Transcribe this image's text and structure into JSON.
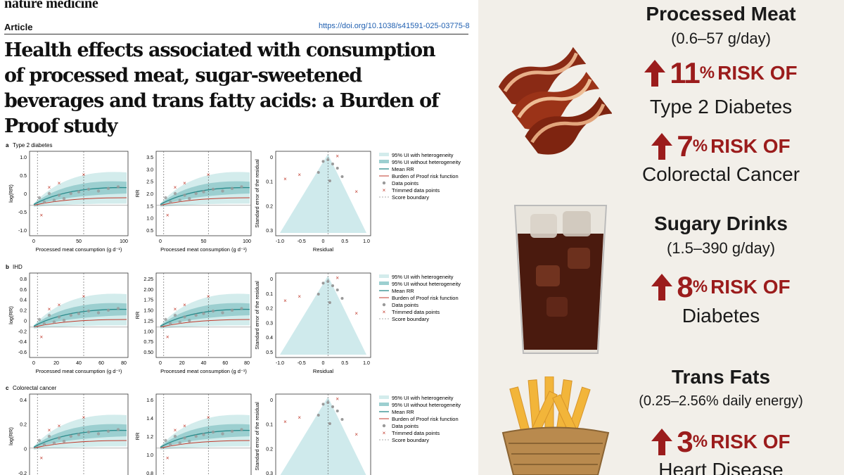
{
  "paper": {
    "journal": "nature medicine",
    "article_type": "Article",
    "doi": "https://doi.org/10.1038/s41591-025-03775-8",
    "title_lines": [
      "Health effects associated with consumption",
      "of processed meat, sugar-sweetened",
      "beverages and trans fatty acids: a Burden of",
      "Proof study"
    ]
  },
  "panels": [
    {
      "tag": "a",
      "name": "Type 2 diabetes",
      "p1": {
        "ylabel": "log(RR)",
        "yticks": [
          "1.0",
          "0.5",
          "0",
          "-0.5",
          "-1.0"
        ],
        "xticks": [
          "0",
          "50",
          "100"
        ],
        "xlabel": "Processed meat consumption (g d⁻¹)"
      },
      "p2": {
        "ylabel": "RR",
        "yticks": [
          "3.5",
          "3.0",
          "2.5",
          "2.0",
          "1.5",
          "1.0",
          "0.5"
        ],
        "xticks": [
          "0",
          "50",
          "100"
        ],
        "xlabel": "Processed meat consumption (g d⁻¹)"
      },
      "p3": {
        "ylabel": "Standard error of the residual",
        "yticks": [
          "0",
          "0.1",
          "0.2",
          "0.3"
        ],
        "xticks": [
          "-1.0",
          "-0.5",
          "0",
          "0.5",
          "1.0"
        ],
        "xlabel": "Residual"
      }
    },
    {
      "tag": "b",
      "name": "IHD",
      "p1": {
        "ylabel": "log(RR)",
        "yticks": [
          "0.8",
          "0.6",
          "0.4",
          "0.2",
          "0",
          "-0.2",
          "-0.4",
          "-0.6"
        ],
        "xticks": [
          "0",
          "20",
          "40",
          "60",
          "80"
        ],
        "xlabel": "Processed meat consumption (g d⁻¹)"
      },
      "p2": {
        "ylabel": "RR",
        "yticks": [
          "2.25",
          "2.00",
          "1.75",
          "1.50",
          "1.25",
          "1.00",
          "0.75",
          "0.50"
        ],
        "xticks": [
          "0",
          "20",
          "40",
          "60",
          "80"
        ],
        "xlabel": "Processed meat consumption (g d⁻¹)"
      },
      "p3": {
        "ylabel": "Standard error of the residual",
        "yticks": [
          "0",
          "0.1",
          "0.2",
          "0.3",
          "0.4",
          "0.5"
        ],
        "xticks": [
          "-1.0",
          "-0.5",
          "0",
          "0.5",
          "1.0"
        ],
        "xlabel": "Residual"
      }
    },
    {
      "tag": "c",
      "name": "Colorectal cancer",
      "p1": {
        "ylabel": "log(RR)",
        "yticks": [
          "0.4",
          "0.2",
          "0",
          "-0.2"
        ],
        "xticks": [],
        "xlabel": ""
      },
      "p2": {
        "ylabel": "RR",
        "yticks": [
          "1.6",
          "1.4",
          "1.2",
          "1.0",
          "0.8"
        ],
        "xticks": [],
        "xlabel": ""
      },
      "p3": {
        "ylabel": "Standard error of the residual",
        "yticks": [
          "0",
          "0.1",
          "0.2",
          "0.3"
        ],
        "xticks": [],
        "xlabel": ""
      }
    }
  ],
  "legend": [
    "95% UI with heterogeneity",
    "95% UI without heterogeneity",
    "Mean RR",
    "Burden of Proof risk function",
    "Data points",
    "Trimmed data points",
    "Score boundary"
  ],
  "colors": {
    "teal": "#2a8a8a",
    "band_outer": "#d3ecec",
    "band_inner": "#9ccfd0",
    "red_line": "#c0392b",
    "accent": "#9b1c1c"
  },
  "infographic": {
    "items": [
      {
        "title": "Processed Meat",
        "range": "(0.6–57 g/day)",
        "risks": [
          {
            "pct": "11",
            "unit": "%",
            "label": "RISK OF",
            "outcome": "Type 2 Diabetes"
          },
          {
            "pct": "7",
            "unit": "%",
            "label": "RISK OF",
            "outcome": "Colorectal Cancer"
          }
        ],
        "icon": "bacon-icon"
      },
      {
        "title": "Sugary Drinks",
        "range": "(1.5–390 g/day)",
        "risks": [
          {
            "pct": "8",
            "unit": "%",
            "label": "RISK OF",
            "outcome": "Diabetes"
          }
        ],
        "icon": "cola-glass-icon"
      },
      {
        "title": "Trans Fats",
        "range": "(0.25–2.56% daily energy)",
        "risks": [
          {
            "pct": "3",
            "unit": "%",
            "label": "RISK OF",
            "outcome": "Heart Disease"
          }
        ],
        "icon": "fries-icon"
      }
    ]
  }
}
